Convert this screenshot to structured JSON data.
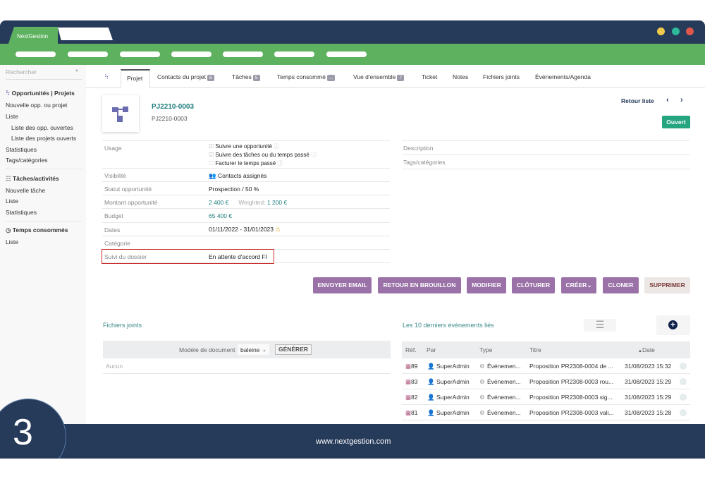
{
  "app": {
    "tab_label": "NextGestion",
    "window_dots": [
      "#f2c94c",
      "#2fb99b",
      "#e0574a"
    ]
  },
  "search": {
    "placeholder": "Rechercher"
  },
  "sidebar": {
    "sections": [
      {
        "title": "Opportunités | Projets",
        "items": [
          "Nouvelle opp. ou projet",
          "Liste",
          "Liste des opp. ouvertes",
          "Liste des projets ouverts",
          "Statistiques",
          "Tags/catégories"
        ]
      },
      {
        "title": "Tâches/activités",
        "items": [
          "Nouvelle tâche",
          "Liste",
          "Statistiques"
        ]
      },
      {
        "title": "Temps consommés",
        "items": [
          "Liste"
        ]
      }
    ]
  },
  "tabs": [
    {
      "label": "Projet",
      "active": true
    },
    {
      "label": "Contacts du projet",
      "badge": "6"
    },
    {
      "label": "Tâches",
      "badge": "5"
    },
    {
      "label": "Temps consommé",
      "badge": "..."
    },
    {
      "label": "Vue d'ensemble",
      "badge": "7"
    },
    {
      "label": "Ticket"
    },
    {
      "label": "Notes"
    },
    {
      "label": "Fichiers joints"
    },
    {
      "label": "Événements/Agenda"
    }
  ],
  "project": {
    "ref": "PJ2210-0003",
    "label": "PJ2210-0003",
    "back_label": "Retour liste",
    "status": "Ouvert",
    "status_color": "#25a580"
  },
  "fields": {
    "usage_label": "Usage",
    "usage_options": [
      {
        "label": "Suivre une opportunité",
        "checked": true
      },
      {
        "label": "Suivre des tâches ou du temps passé",
        "checked": true
      },
      {
        "label": "Facturer le temps passé",
        "checked": false
      }
    ],
    "visibility_label": "Visibilité",
    "visibility": "Contacts assignés",
    "status_label": "Statut opportunité",
    "status": "Prospection / 50 %",
    "amount_label": "Montant opportunité",
    "amount": "2 400 €",
    "weighted_label": "Weighted:",
    "weighted": "1 200 €",
    "budget_label": "Budget",
    "budget": "65 400 €",
    "dates_label": "Dates",
    "dates": "01/11/2022 - 31/01/2023",
    "category_label": "Catégorie",
    "followup_label": "Suivi du dossier",
    "followup": "En attente d'accord FI",
    "description_label": "Description",
    "tags_label": "Tags/catégories"
  },
  "actions": [
    "ENVOYER EMAIL",
    "RETOUR EN BROUILLON",
    "MODIFIER",
    "CLÔTURER",
    "CRÉER",
    "CLONER",
    "SUPPRIMER"
  ],
  "files": {
    "title": "Fichiers joints",
    "template_label": "Modèle de document",
    "template_value": "baleine",
    "generate_label": "GÉNÉRER",
    "empty": "Aucun"
  },
  "events": {
    "title": "Les 10 derniers événements liés",
    "columns": [
      "Réf.",
      "Par",
      "Type",
      "Titre",
      "Date"
    ],
    "rows": [
      {
        "ref": "89",
        "by": "SuperAdmin",
        "type": "Événemen...",
        "title": "Proposition PR2308-0004 de ...",
        "date": "31/08/2023 15:32"
      },
      {
        "ref": "83",
        "by": "SuperAdmin",
        "type": "Événemen...",
        "title": "Proposition PR2308-0003 rou...",
        "date": "31/08/2023 15:29"
      },
      {
        "ref": "82",
        "by": "SuperAdmin",
        "type": "Événemen...",
        "title": "Proposition PR2308-0003 sig...",
        "date": "31/08/2023 15:29"
      },
      {
        "ref": "81",
        "by": "SuperAdmin",
        "type": "Événemen...",
        "title": "Proposition PR2308-0003 vali...",
        "date": "31/08/2023 15:28"
      }
    ]
  },
  "footer": {
    "url": "www.nextgestion.com",
    "step": "3"
  }
}
